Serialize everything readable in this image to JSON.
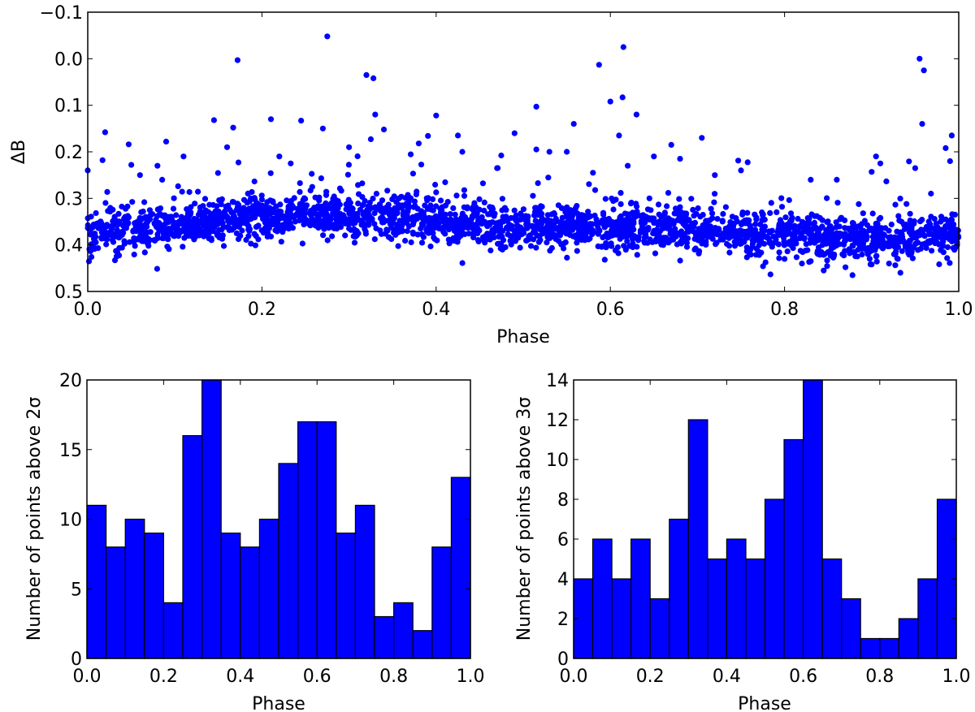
{
  "chart_data": [
    {
      "id": "scatter",
      "type": "scatter",
      "title": "",
      "xlabel": "Phase",
      "ylabel": "ΔB",
      "xlim": [
        0.0,
        1.0
      ],
      "ylim": [
        0.5,
        -0.1
      ],
      "y_inverted": true,
      "xticks": [
        "0.0",
        "0.2",
        "0.4",
        "0.6",
        "0.8",
        "1.0"
      ],
      "yticks": [
        "−0.1",
        "0.0",
        "0.1",
        "0.2",
        "0.3",
        "0.4",
        "0.5"
      ],
      "marker_color": "#0000ff",
      "band": {
        "description": "dense band of ~several thousand points",
        "baseline": [
          [
            0.0,
            0.375
          ],
          [
            0.1,
            0.36
          ],
          [
            0.2,
            0.34
          ],
          [
            0.25,
            0.335
          ],
          [
            0.3,
            0.335
          ],
          [
            0.4,
            0.35
          ],
          [
            0.5,
            0.365
          ],
          [
            0.6,
            0.36
          ],
          [
            0.7,
            0.365
          ],
          [
            0.8,
            0.38
          ],
          [
            0.9,
            0.39
          ],
          [
            1.0,
            0.38
          ]
        ],
        "spread": 0.03
      },
      "outliers": [
        [
          0.275,
          -0.048
        ],
        [
          0.172,
          0.003
        ],
        [
          0.615,
          -0.025
        ],
        [
          0.587,
          0.013
        ],
        [
          0.955,
          0.0
        ],
        [
          0.96,
          0.025
        ],
        [
          0.32,
          0.035
        ],
        [
          0.328,
          0.042
        ],
        [
          0.6,
          0.092
        ],
        [
          0.614,
          0.083
        ],
        [
          0.515,
          0.103
        ],
        [
          0.63,
          0.12
        ],
        [
          0.33,
          0.12
        ],
        [
          0.4,
          0.122
        ],
        [
          0.145,
          0.132
        ],
        [
          0.245,
          0.133
        ],
        [
          0.958,
          0.14
        ],
        [
          0.558,
          0.14
        ],
        [
          0.02,
          0.158
        ],
        [
          0.167,
          0.148
        ],
        [
          0.27,
          0.15
        ],
        [
          0.34,
          0.152
        ],
        [
          0.425,
          0.165
        ],
        [
          0.49,
          0.16
        ],
        [
          0.61,
          0.165
        ],
        [
          0.705,
          0.17
        ],
        [
          0.992,
          0.165
        ],
        [
          0.09,
          0.178
        ],
        [
          0.047,
          0.184
        ],
        [
          0.16,
          0.19
        ],
        [
          0.325,
          0.173
        ],
        [
          0.67,
          0.185
        ],
        [
          0.38,
          0.182
        ],
        [
          0.55,
          0.2
        ],
        [
          0.515,
          0.195
        ],
        [
          0.65,
          0.21
        ],
        [
          0.0,
          0.24
        ],
        [
          0.017,
          0.218
        ],
        [
          0.05,
          0.228
        ],
        [
          0.08,
          0.23
        ],
        [
          0.22,
          0.21
        ],
        [
          0.3,
          0.19
        ],
        [
          0.43,
          0.2
        ],
        [
          0.47,
          0.235
        ],
        [
          0.53,
          0.2
        ],
        [
          0.58,
          0.245
        ],
        [
          0.68,
          0.215
        ],
        [
          0.72,
          0.25
        ],
        [
          0.905,
          0.21
        ],
        [
          0.91,
          0.225
        ],
        [
          0.985,
          0.192
        ],
        [
          0.95,
          0.235
        ],
        [
          0.83,
          0.26
        ],
        [
          0.9,
          0.243
        ],
        [
          0.06,
          0.25
        ],
        [
          0.11,
          0.21
        ],
        [
          0.62,
          0.23
        ],
        [
          0.75,
          0.24
        ],
        [
          0.86,
          0.26
        ],
        [
          0.99,
          0.22
        ],
        [
          0.845,
          0.455
        ],
        [
          0.878,
          0.465
        ],
        [
          0.87,
          0.448
        ],
        [
          0.9,
          0.442
        ],
        [
          0.82,
          0.44
        ],
        [
          0.92,
          0.44
        ],
        [
          0.8,
          0.43
        ],
        [
          0.83,
          0.435
        ],
        [
          0.76,
          0.42
        ],
        [
          0.93,
          0.43
        ]
      ]
    },
    {
      "id": "hist2",
      "type": "bar",
      "title": "",
      "xlabel": "Phase",
      "ylabel": "Number of points above 2σ",
      "xlim": [
        0.0,
        1.0
      ],
      "ylim": [
        0,
        20
      ],
      "xticks": [
        "0.0",
        "0.2",
        "0.4",
        "0.6",
        "0.8",
        "1.0"
      ],
      "yticks": [
        "0",
        "5",
        "10",
        "15",
        "20"
      ],
      "bin_width": 0.05,
      "bin_starts": [
        0.0,
        0.05,
        0.1,
        0.15,
        0.2,
        0.25,
        0.3,
        0.35,
        0.4,
        0.45,
        0.5,
        0.55,
        0.6,
        0.65,
        0.7,
        0.75,
        0.8,
        0.85,
        0.9,
        0.95
      ],
      "values": [
        11,
        8,
        10,
        9,
        4,
        16,
        20,
        9,
        8,
        10,
        14,
        17,
        17,
        9,
        11,
        3,
        4,
        2,
        8,
        13
      ],
      "bar_color": "#0000ff"
    },
    {
      "id": "hist3",
      "type": "bar",
      "title": "",
      "xlabel": "Phase",
      "ylabel": "Number of points above 3σ",
      "xlim": [
        0.0,
        1.0
      ],
      "ylim": [
        0,
        14
      ],
      "xticks": [
        "0.0",
        "0.2",
        "0.4",
        "0.6",
        "0.8",
        "1.0"
      ],
      "yticks": [
        "0",
        "2",
        "4",
        "6",
        "8",
        "10",
        "12",
        "14"
      ],
      "bin_width": 0.05,
      "bin_starts": [
        0.0,
        0.05,
        0.1,
        0.15,
        0.2,
        0.25,
        0.3,
        0.35,
        0.4,
        0.45,
        0.5,
        0.55,
        0.6,
        0.65,
        0.7,
        0.75,
        0.8,
        0.85,
        0.9,
        0.95
      ],
      "values": [
        4,
        6,
        4,
        6,
        3,
        7,
        12,
        5,
        6,
        5,
        8,
        11,
        14,
        5,
        3,
        1,
        1,
        2,
        4,
        8
      ],
      "bar_color": "#0000ff"
    }
  ]
}
